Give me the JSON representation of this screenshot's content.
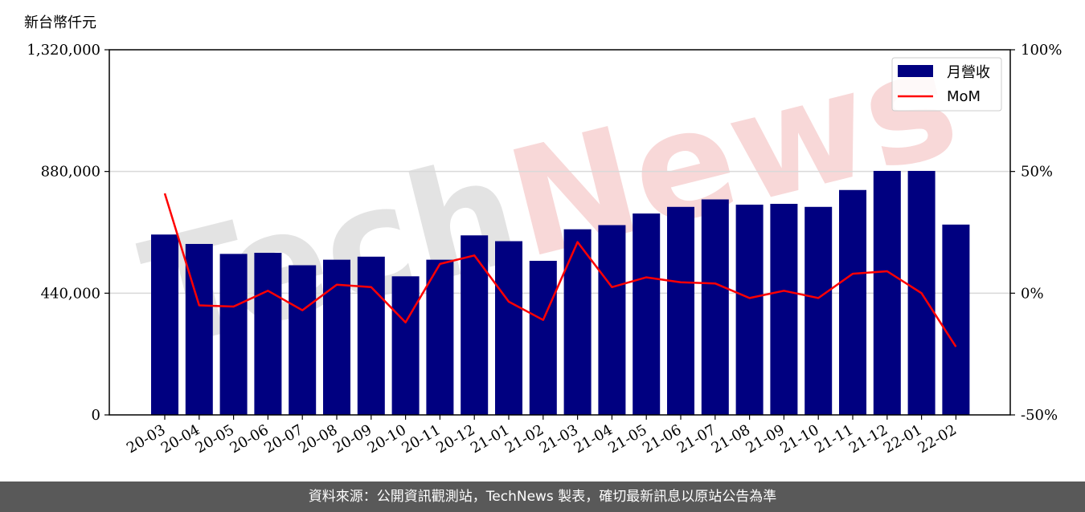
{
  "unit_label": "新台幣仟元",
  "watermark_text": "TechNews",
  "footer_text": "資料來源：公開資訊觀測站，TechNews 製表，確切最新訊息以原站公告為準",
  "colors": {
    "bar": "#000080",
    "line": "#ff0000",
    "footer_bg": "#595959",
    "grid": "#d9d9d9"
  },
  "chart_data": {
    "type": "bar",
    "categories": [
      "20-03",
      "20-04",
      "20-05",
      "20-06",
      "20-07",
      "20-08",
      "20-09",
      "20-10",
      "20-11",
      "20-12",
      "21-01",
      "21-02",
      "21-03",
      "21-04",
      "21-05",
      "21-06",
      "21-07",
      "21-08",
      "21-09",
      "21-10",
      "21-11",
      "21-12",
      "22-01",
      "22-02"
    ],
    "series": [
      {
        "name": "月營收",
        "type": "bar",
        "axis": "left",
        "values": [
          652000,
          618000,
          582000,
          586000,
          541000,
          561000,
          572000,
          501000,
          561000,
          649000,
          628000,
          557000,
          671000,
          686000,
          728000,
          752000,
          779000,
          760000,
          763000,
          752000,
          813000,
          882000,
          882000,
          688000
        ]
      },
      {
        "name": "MoM",
        "type": "line",
        "axis": "right",
        "values": [
          41,
          -5,
          -5.5,
          1,
          -7,
          3.5,
          2.5,
          -12,
          12,
          15.5,
          -3.5,
          -11,
          21,
          2.5,
          6.5,
          4.5,
          4,
          -2,
          1,
          -2,
          8,
          9,
          0,
          -22
        ]
      }
    ],
    "y_left": {
      "ticks": [
        0,
        440000,
        880000,
        1320000
      ],
      "tick_labels": [
        "0",
        "440,000",
        "880,000",
        "1,320,000"
      ],
      "ylim": [
        0,
        1320000
      ]
    },
    "y_right": {
      "ticks": [
        -50,
        0,
        50,
        100
      ],
      "tick_labels": [
        "-50%",
        "0%",
        "50%",
        "100%"
      ],
      "ylim": [
        -50,
        100
      ]
    },
    "grid": "horizontal",
    "legend": {
      "placement": "top-right",
      "entries": [
        "月營收",
        "MoM"
      ]
    }
  }
}
